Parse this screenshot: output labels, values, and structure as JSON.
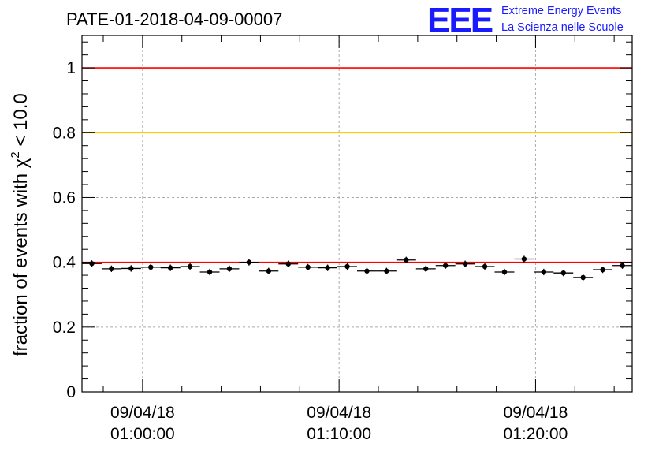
{
  "header": {
    "run_title": "PATE-01-2018-04-09-00007",
    "logo_text": "EEE",
    "logo_line1": "Extreme Energy Events",
    "logo_line2": "La Scienza nelle Scuole"
  },
  "colors": {
    "ref_line_1": "#ff0000",
    "ref_line_08": "#ffcc00",
    "ref_line_04": "#ff0000",
    "logo": "#1a1aff"
  },
  "chart_data": {
    "type": "scatter",
    "ylabel_main": "fraction of events with χ",
    "ylabel_sup": "2",
    "ylabel_tail": " < 10.0",
    "ylim": [
      0,
      1.1
    ],
    "yticks": [
      0,
      0.2,
      0.4,
      0.6,
      0.8,
      1
    ],
    "ytick_labels": [
      "0",
      "0.2",
      "0.4",
      "0.6",
      "0.8",
      "1"
    ],
    "xlim": [
      "00:56:55",
      "01:24:55"
    ],
    "xticks": [
      {
        "date": "09/04/18",
        "time": "01:00:00"
      },
      {
        "date": "09/04/18",
        "time": "01:10:00"
      },
      {
        "date": "09/04/18",
        "time": "01:20:00"
      }
    ],
    "grid": true,
    "reference_lines": [
      1.0,
      0.8,
      0.4
    ],
    "bin_width_min": 1,
    "series": [
      {
        "start": "00:56:55",
        "values": [
          0.396,
          0.38,
          0.381,
          0.385,
          0.383,
          0.387,
          0.37,
          0.38,
          0.4,
          0.373,
          0.395,
          0.385,
          0.383,
          0.387,
          0.373,
          0.373,
          0.407,
          0.38,
          0.39,
          0.395,
          0.387,
          0.37,
          0.41,
          0.37,
          0.367,
          0.353,
          0.377,
          0.39
        ],
        "errors": [
          0.01,
          0.01,
          0.01,
          0.01,
          0.01,
          0.01,
          0.01,
          0.01,
          0.01,
          0.01,
          0.01,
          0.01,
          0.01,
          0.01,
          0.01,
          0.01,
          0.01,
          0.01,
          0.01,
          0.01,
          0.01,
          0.01,
          0.01,
          0.01,
          0.01,
          0.01,
          0.01,
          0.01
        ]
      }
    ]
  }
}
